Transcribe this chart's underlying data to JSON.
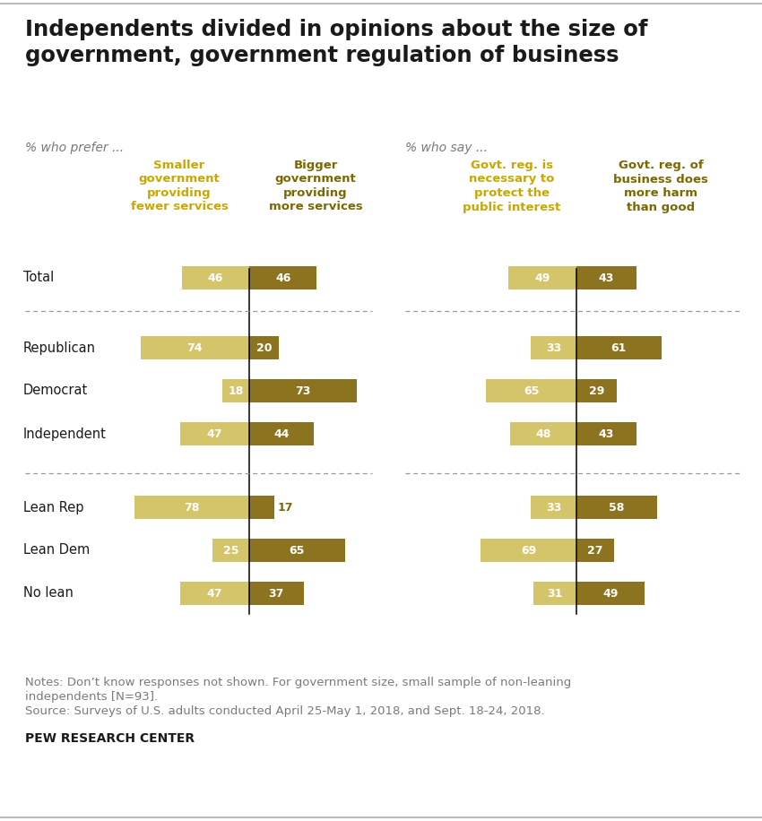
{
  "title": "Independents divided in opinions about the size of\ngovernment, government regulation of business",
  "subtitle_left": "% who prefer ...",
  "subtitle_right": "% who say ...",
  "col_headers": [
    "Smaller\ngovernment\nproviding\nfewer services",
    "Bigger\ngovernment\nproviding\nmore services",
    "Govt. reg. is\nnecessary to\nprotect the\npublic interest",
    "Govt. reg. of\nbusiness does\nmore harm\nthan good"
  ],
  "rows": [
    "Total",
    "Republican",
    "Democrat",
    "Independent",
    "Lean Rep",
    "Lean Dem",
    "No lean"
  ],
  "left_vals1": [
    46,
    74,
    18,
    47,
    78,
    25,
    47
  ],
  "left_vals2": [
    46,
    20,
    73,
    44,
    17,
    65,
    37
  ],
  "right_vals1": [
    49,
    33,
    65,
    48,
    33,
    69,
    31
  ],
  "right_vals2": [
    43,
    61,
    29,
    43,
    58,
    27,
    49
  ],
  "color_light": "#D4C46A",
  "color_dark": "#8B7320",
  "color_header_light": "#C8A800",
  "color_header_dark": "#7A6800",
  "notes_line1": "Notes: Don’t know responses not shown. For government size, small sample of non-leaning",
  "notes_line2": "independents [N=93].",
  "notes_line3": "Source: Surveys of U.S. adults conducted April 25-May 1, 2018, and Sept. 18-24, 2018.",
  "source_bold": "PEW RESEARCH CENTER",
  "bg": "#FFFFFF",
  "border_color": "#CCCCCC"
}
